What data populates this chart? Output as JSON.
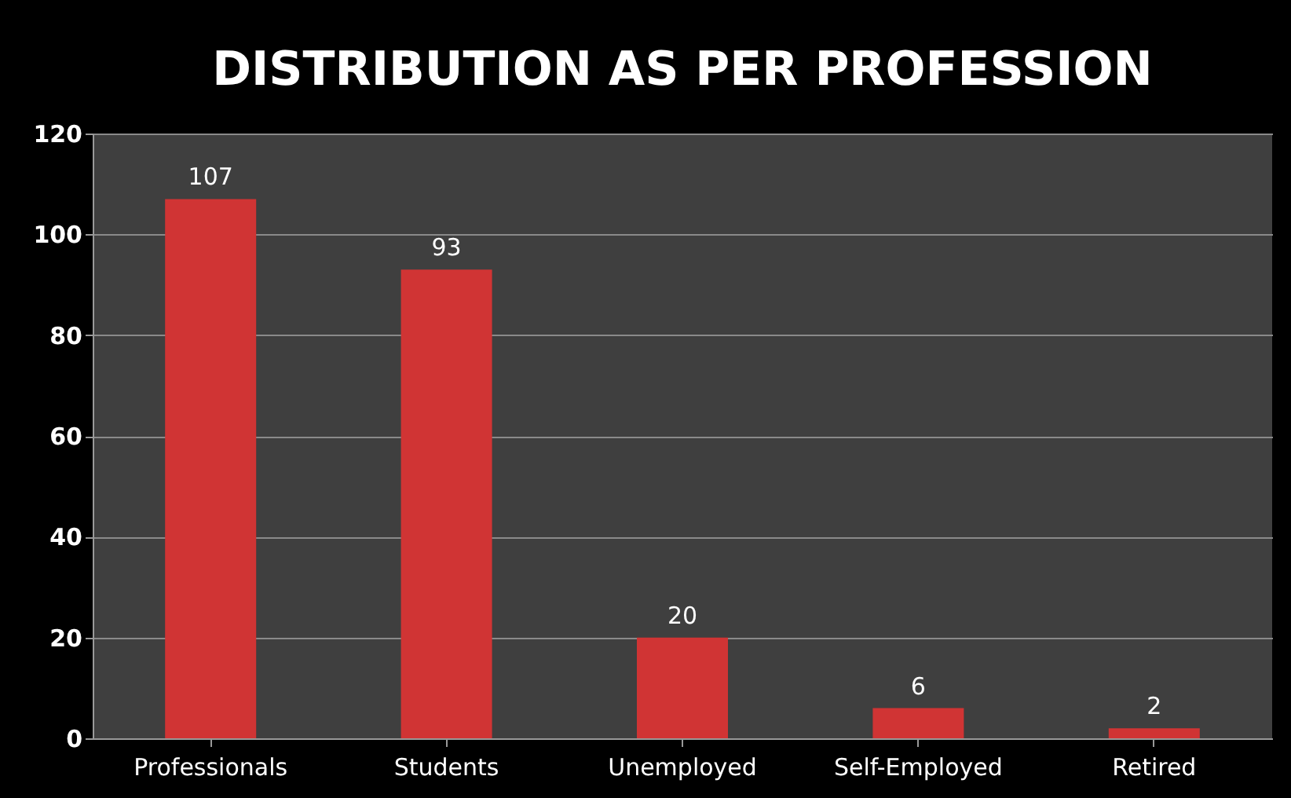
{
  "chart_data": {
    "type": "bar",
    "title": "DISTRIBUTION AS PER PROFESSION",
    "categories": [
      "Professionals",
      "Students",
      "Unemployed",
      "Self-Employed",
      "Retired"
    ],
    "values": [
      107,
      93,
      20,
      6,
      2
    ],
    "color": "#d03434",
    "ylim": [
      0,
      120
    ],
    "yticks": [
      0,
      20,
      40,
      60,
      80,
      100,
      120
    ],
    "grid": "y",
    "data_labels": true
  }
}
